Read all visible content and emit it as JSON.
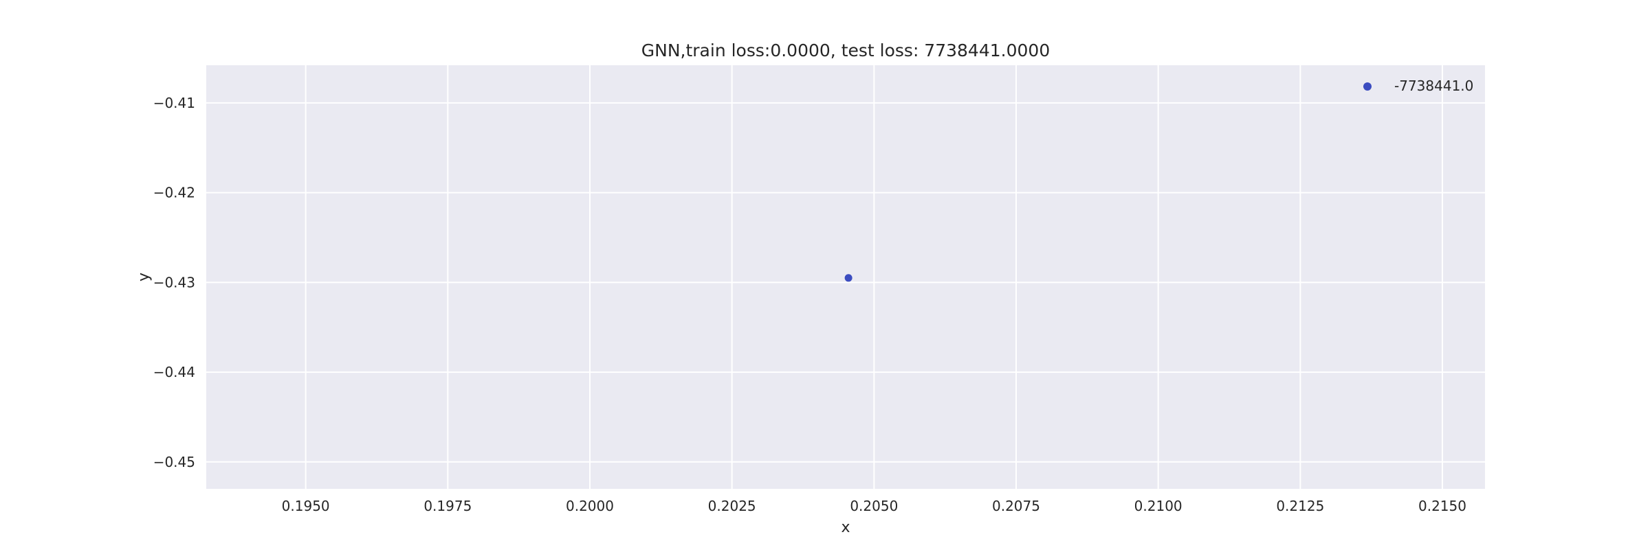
{
  "chart_data": {
    "type": "scatter",
    "title": "GNN,train loss:0.0000, test loss: 7738441.0000",
    "xlabel": "x",
    "ylabel": "y",
    "xlim": [
      0.19325,
      0.21575
    ],
    "ylim": [
      -0.453,
      -0.4058
    ],
    "xticks": [
      0.195,
      0.1975,
      0.2,
      0.2025,
      0.205,
      0.2075,
      0.21,
      0.2125,
      0.215
    ],
    "xtick_labels": [
      "0.1950",
      "0.1975",
      "0.2000",
      "0.2025",
      "0.2050",
      "0.2075",
      "0.2100",
      "0.2125",
      "0.2150"
    ],
    "yticks": [
      -0.41,
      -0.42,
      -0.43,
      -0.44,
      -0.45
    ],
    "ytick_labels": [
      "−0.41",
      "−0.42",
      "−0.43",
      "−0.44",
      "−0.45"
    ],
    "grid": true,
    "legend_position": "top-right",
    "series": [
      {
        "name": "-7738441.0",
        "color": "#3b4cc0",
        "points": [
          {
            "x": 0.20455,
            "y": -0.4295
          }
        ]
      }
    ],
    "colors": {
      "plot_background": "#eaeaf2",
      "grid": "#ffffff",
      "text": "#262626"
    }
  }
}
